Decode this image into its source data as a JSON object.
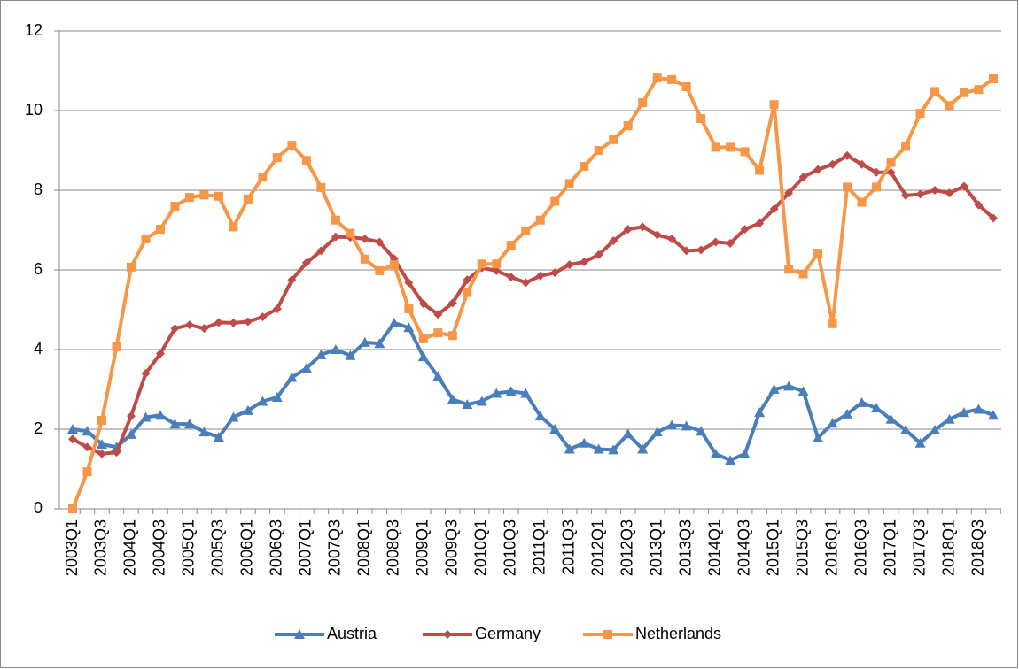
{
  "chart_data": {
    "type": "line",
    "categories": [
      "2003Q1",
      null,
      "2003Q3",
      null,
      "2004Q1",
      null,
      "2004Q3",
      null,
      "2005Q1",
      null,
      "2005Q3",
      null,
      "2006Q1",
      null,
      "2006Q3",
      null,
      "2007Q1",
      null,
      "2007Q3",
      null,
      "2008Q1",
      null,
      "2008Q3",
      null,
      "2009Q1",
      null,
      "2009Q3",
      null,
      "2010Q1",
      null,
      "2010Q3",
      null,
      "2011Q1",
      null,
      "2011Q3",
      null,
      "2012Q1",
      null,
      "2012Q3",
      null,
      "2013Q1",
      null,
      "2013Q3",
      null,
      "2014Q1",
      null,
      "2014Q3",
      null,
      "2015Q1",
      null,
      "2015Q3",
      null,
      "2016Q1",
      null,
      "2016Q3",
      null,
      "2017Q1",
      null,
      "2017Q3",
      null,
      "2018Q1",
      null,
      "2018Q3",
      null
    ],
    "series": [
      {
        "name": "Austria",
        "color": "#4a7ebb",
        "marker": "triangle",
        "values": [
          2.0,
          1.95,
          1.62,
          1.55,
          1.87,
          2.3,
          2.35,
          2.13,
          2.13,
          1.93,
          1.8,
          2.3,
          2.47,
          2.7,
          2.8,
          3.3,
          3.53,
          3.87,
          4.0,
          3.85,
          4.18,
          4.15,
          4.67,
          4.55,
          3.82,
          3.33,
          2.75,
          2.62,
          2.7,
          2.9,
          2.95,
          2.9,
          2.33,
          2.0,
          1.5,
          1.65,
          1.5,
          1.48,
          1.88,
          1.5,
          1.93,
          2.1,
          2.08,
          1.95,
          1.38,
          1.22,
          1.38,
          2.42,
          3.0,
          3.08,
          2.95,
          1.78,
          2.15,
          2.38,
          2.67,
          2.53,
          2.25,
          1.98,
          1.65,
          1.98,
          2.25,
          2.42,
          2.5,
          2.35
        ]
      },
      {
        "name": "Germany",
        "color": "#be4b48",
        "marker": "diamond",
        "values": [
          1.75,
          1.55,
          1.38,
          1.42,
          2.33,
          3.4,
          3.9,
          4.53,
          4.62,
          4.53,
          4.68,
          4.67,
          4.7,
          4.82,
          5.02,
          5.75,
          6.18,
          6.48,
          6.83,
          6.82,
          6.78,
          6.7,
          6.28,
          5.68,
          5.15,
          4.88,
          5.17,
          5.75,
          6.05,
          5.98,
          5.82,
          5.68,
          5.85,
          5.93,
          6.13,
          6.2,
          6.38,
          6.73,
          7.02,
          7.08,
          6.88,
          6.78,
          6.48,
          6.5,
          6.7,
          6.67,
          7.02,
          7.17,
          7.53,
          7.93,
          8.33,
          8.52,
          8.65,
          8.87,
          8.65,
          8.45,
          8.45,
          7.87,
          7.9,
          8.0,
          7.93,
          8.1,
          7.63,
          7.3
        ]
      },
      {
        "name": "Netherlands",
        "color": "#f79646",
        "marker": "square",
        "values": [
          0,
          0.93,
          2.22,
          4.07,
          6.07,
          6.78,
          7.02,
          7.6,
          7.82,
          7.88,
          7.85,
          7.08,
          7.78,
          8.33,
          8.82,
          9.13,
          8.75,
          8.07,
          7.25,
          6.92,
          6.27,
          5.98,
          6.13,
          5.02,
          4.27,
          4.42,
          4.35,
          5.43,
          6.15,
          6.15,
          6.62,
          6.98,
          7.25,
          7.72,
          8.17,
          8.6,
          9.0,
          9.27,
          9.62,
          10.2,
          10.82,
          10.78,
          10.6,
          9.8,
          9.08,
          9.08,
          8.97,
          8.5,
          10.15,
          6.02,
          5.9,
          6.42,
          4.65,
          8.08,
          7.7,
          8.08,
          8.7,
          9.1,
          9.93,
          10.48,
          10.13,
          10.45,
          10.53,
          10.8
        ]
      }
    ],
    "ylim": [
      0,
      12
    ],
    "yticks": [
      0,
      2,
      4,
      6,
      8,
      10,
      12
    ],
    "grid": true,
    "legend": "bottom"
  }
}
